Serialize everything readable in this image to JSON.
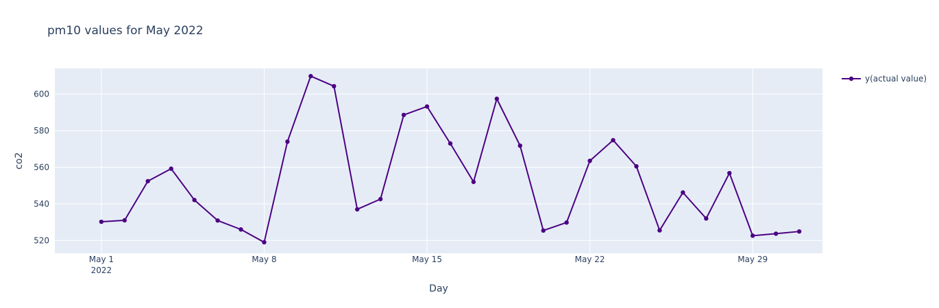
{
  "chart_data": {
    "type": "line",
    "title": "pm10 values for May 2022",
    "xlabel": "Day",
    "ylabel": "co2",
    "x_ticks": [
      {
        "day": 1,
        "label": "May 1",
        "sub": "2022"
      },
      {
        "day": 8,
        "label": "May 8",
        "sub": ""
      },
      {
        "day": 15,
        "label": "May 15",
        "sub": ""
      },
      {
        "day": 22,
        "label": "May 22",
        "sub": ""
      },
      {
        "day": 29,
        "label": "May 29",
        "sub": ""
      }
    ],
    "y_ticks": [
      520,
      540,
      560,
      580,
      600
    ],
    "xlim": [
      "2022-04-29",
      "2022-06-01"
    ],
    "ylim": [
      513,
      614
    ],
    "grid": true,
    "legend_position": "top-right",
    "colors": {
      "line": "#4b0082",
      "plot_bg": "#e5ecf6",
      "grid": "#ffffff",
      "text": "#2a3f5f"
    },
    "series": [
      {
        "name": "y(actual value)",
        "x": [
          "2022-05-01",
          "2022-05-02",
          "2022-05-03",
          "2022-05-04",
          "2022-05-05",
          "2022-05-06",
          "2022-05-07",
          "2022-05-08",
          "2022-05-09",
          "2022-05-10",
          "2022-05-11",
          "2022-05-12",
          "2022-05-13",
          "2022-05-14",
          "2022-05-15",
          "2022-05-16",
          "2022-05-17",
          "2022-05-18",
          "2022-05-19",
          "2022-05-20",
          "2022-05-21",
          "2022-05-22",
          "2022-05-23",
          "2022-05-24",
          "2022-05-25",
          "2022-05-26",
          "2022-05-27",
          "2022-05-28",
          "2022-05-29",
          "2022-05-30",
          "2022-05-31"
        ],
        "values": [
          530.2,
          531.0,
          552.4,
          559.2,
          542.1,
          530.9,
          526.0,
          519.0,
          574.0,
          609.8,
          604.3,
          537.0,
          542.6,
          588.6,
          593.2,
          573.0,
          552.0,
          597.4,
          571.8,
          525.4,
          529.8,
          563.5,
          574.8,
          560.5,
          525.5,
          546.2,
          532.0,
          556.8,
          522.6,
          523.7,
          524.9
        ]
      }
    ]
  }
}
